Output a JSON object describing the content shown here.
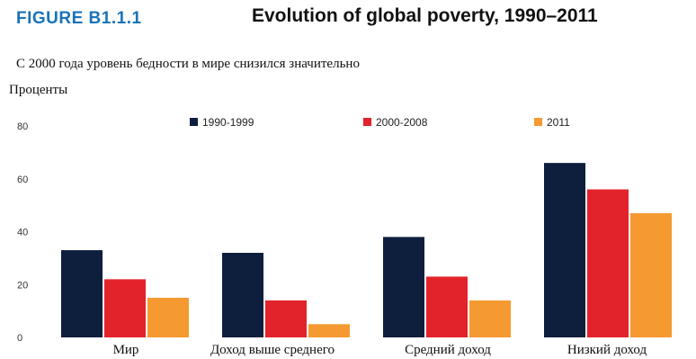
{
  "figure": {
    "label": "FIGURE B1.1.1",
    "title": "Evolution of global poverty, 1990–2011",
    "subtitle": "С 2000 года уровень бедности в мире снизился значительно",
    "unit_label": "Проценты"
  },
  "colors": {
    "series_1": "#0d1f3c",
    "series_2": "#e3232b",
    "series_3": "#f59a31"
  },
  "chart_data": {
    "type": "bar",
    "title": "Evolution of global poverty, 1990–2011",
    "subtitle": "С 2000 года уровень бедности в мире снизился значительно",
    "ylabel": "Проценты",
    "xlabel": "",
    "categories": [
      "Мир",
      "Доход выше среднего",
      "Средний доход",
      "Низкий доход"
    ],
    "series": [
      {
        "name": "1990-1999",
        "values": [
          33,
          32,
          38,
          66
        ]
      },
      {
        "name": "2000-2008",
        "values": [
          22,
          14,
          23,
          56
        ]
      },
      {
        "name": "2011",
        "values": [
          15,
          5,
          14,
          47
        ]
      }
    ],
    "ylim": [
      0,
      80
    ],
    "yticks": [
      0,
      20,
      40,
      60,
      80
    ],
    "grid": false,
    "legend_position": "top"
  }
}
